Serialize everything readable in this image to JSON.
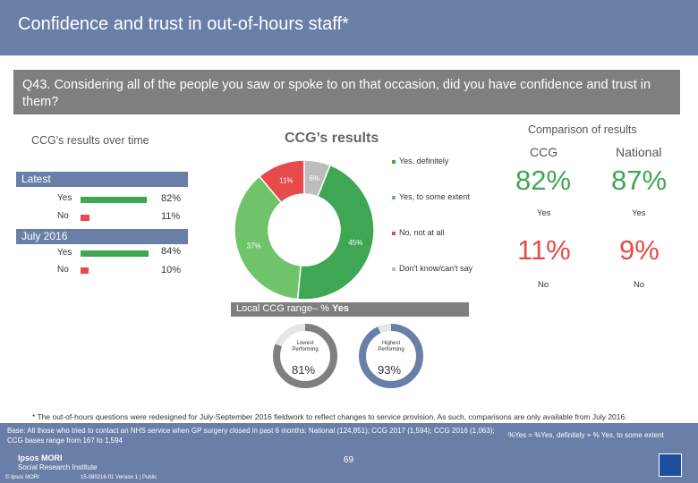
{
  "header": {
    "title": "Confidence and trust in out-of-hours staff*"
  },
  "question": {
    "text": "Q43. Considering all of the people you saw or spoke to on that occasion, did you have confidence and trust in them?"
  },
  "left": {
    "heading": "CCG's results over time",
    "periods": [
      {
        "label": "Latest",
        "rows": [
          {
            "label": "Yes",
            "value": 82,
            "pct": "82%"
          },
          {
            "label": "No",
            "value": 11,
            "pct": "11%"
          }
        ]
      },
      {
        "label": "July 2016",
        "rows": [
          {
            "label": "Yes",
            "value": 84,
            "pct": "84%"
          },
          {
            "label": "No",
            "value": 10,
            "pct": "10%"
          }
        ]
      }
    ]
  },
  "center": {
    "heading": "CCG’s results"
  },
  "chart_data": {
    "type": "pie",
    "style": "donut",
    "slices": [
      {
        "label": "Yes, definitely",
        "value": 45,
        "display": "45%",
        "color": "#3fa653"
      },
      {
        "label": "Yes, to some extent",
        "value": 37,
        "display": "37%",
        "color": "#6fc46b"
      },
      {
        "label": "No, not at all",
        "value": 11,
        "display": "11%",
        "color": "#e74a4a"
      },
      {
        "label": "Don't know/can't say",
        "value": 6,
        "display": "6%",
        "color": "#bdbdbd"
      }
    ]
  },
  "comparison": {
    "heading": "Comparison of results",
    "col_ccg": "CCG",
    "col_national": "National",
    "yes_ccg": "82%",
    "yes_national": "87%",
    "yes_label": "Yes",
    "no_ccg": "11%",
    "no_national": "9%",
    "no_label": "No"
  },
  "range": {
    "heading_prefix": "Local CCG range– % ",
    "heading_bold": "Yes",
    "lowest": {
      "label_line1": "Lowest",
      "label_line2": "Performing",
      "value": "81%",
      "fill": 81
    },
    "highest": {
      "label_line1": "Highest",
      "label_line2": "Performing",
      "value": "93%",
      "fill": 93
    }
  },
  "footnote": "* The out-of-hours questions were redesigned for July-September 2016 fieldwork to reflect changes to service provision. As such, comparisons are only available from July 2016.",
  "footer": {
    "base_line1": "Base: All those who tried to contact an NHS service when GP surgery closed in past 6 months: National (124,851); CCG 2017 (1,594); CCG 2016 (1,063);",
    "base_line2": "CCG bases range from 167 to 1,594",
    "note": "%Yes = %Yes, definitely + % Yes, to some extent",
    "logo_line1": "Ipsos MORI",
    "logo_line2": "Social Research Institute",
    "copyright": "© Ipsos MORI",
    "version": "15-080216-01 Version 1 | Public",
    "page": "69"
  },
  "colors": {
    "band": "#6a7fa8",
    "grey_band": "#7f7f7f",
    "green": "#3fa653",
    "light_green": "#6fc46b",
    "red": "#e74a4a",
    "grey": "#bdbdbd"
  }
}
